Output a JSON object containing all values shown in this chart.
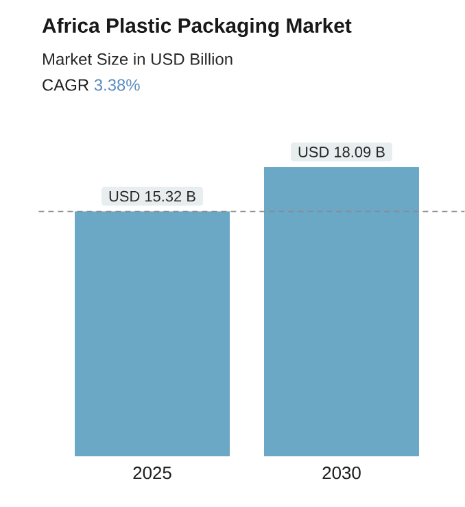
{
  "chart_data": {
    "type": "bar",
    "title": "Africa Plastic Packaging Market",
    "subtitle": "Market Size in USD Billion",
    "annotations": [
      "CAGR",
      "3.38%"
    ],
    "categories": [
      "2025",
      "2030"
    ],
    "values": [
      15.32,
      18.09
    ],
    "value_labels": [
      "USD 15.32 B",
      "USD 18.09 B"
    ],
    "color": "#6aa8c6",
    "tick_labels": "x",
    "ref_lines": [
      {
        "axis": "y",
        "value": 15.32,
        "color": "#8a8a8a",
        "line_style": "dashed"
      }
    ]
  }
}
